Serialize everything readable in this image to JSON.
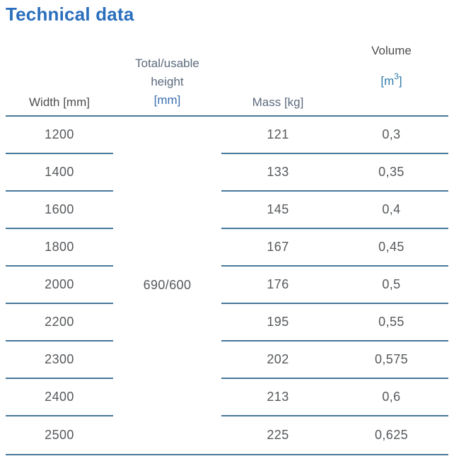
{
  "title": "Technical data",
  "table": {
    "columns": {
      "width": {
        "label": "Width [mm]"
      },
      "height": {
        "label_line1": "Total/usable",
        "label_line2": "height",
        "unit": "[mm]"
      },
      "mass": {
        "label": "Mass [kg]"
      },
      "volume": {
        "label": "Volume",
        "unit_open": "[m",
        "unit_sup": "3",
        "unit_close": "]"
      }
    },
    "merged_height_value": "690/600",
    "rows": [
      {
        "width": "1200",
        "mass": "121",
        "volume": "0,3"
      },
      {
        "width": "1400",
        "mass": "133",
        "volume": "0,35"
      },
      {
        "width": "1600",
        "mass": "145",
        "volume": "0,4"
      },
      {
        "width": "1800",
        "mass": "167",
        "volume": "0,45"
      },
      {
        "width": "2000",
        "mass": "176",
        "volume": "0,5"
      },
      {
        "width": "2200",
        "mass": "195",
        "volume": "0,55"
      },
      {
        "width": "2300",
        "mass": "202",
        "volume": "0,575"
      },
      {
        "width": "2400",
        "mass": "213",
        "volume": "0,6"
      },
      {
        "width": "2500",
        "mass": "225",
        "volume": "0,625"
      }
    ]
  },
  "colors": {
    "title_blue": "#2a6ebc",
    "rule_blue": "#48789a",
    "header_dark_gray": "#4d4e50",
    "header_slate": "#5c6b7d",
    "unit_blue": "#3a6fb1",
    "unit_teal": "#2f7ba8",
    "value_gray": "#55585b"
  }
}
